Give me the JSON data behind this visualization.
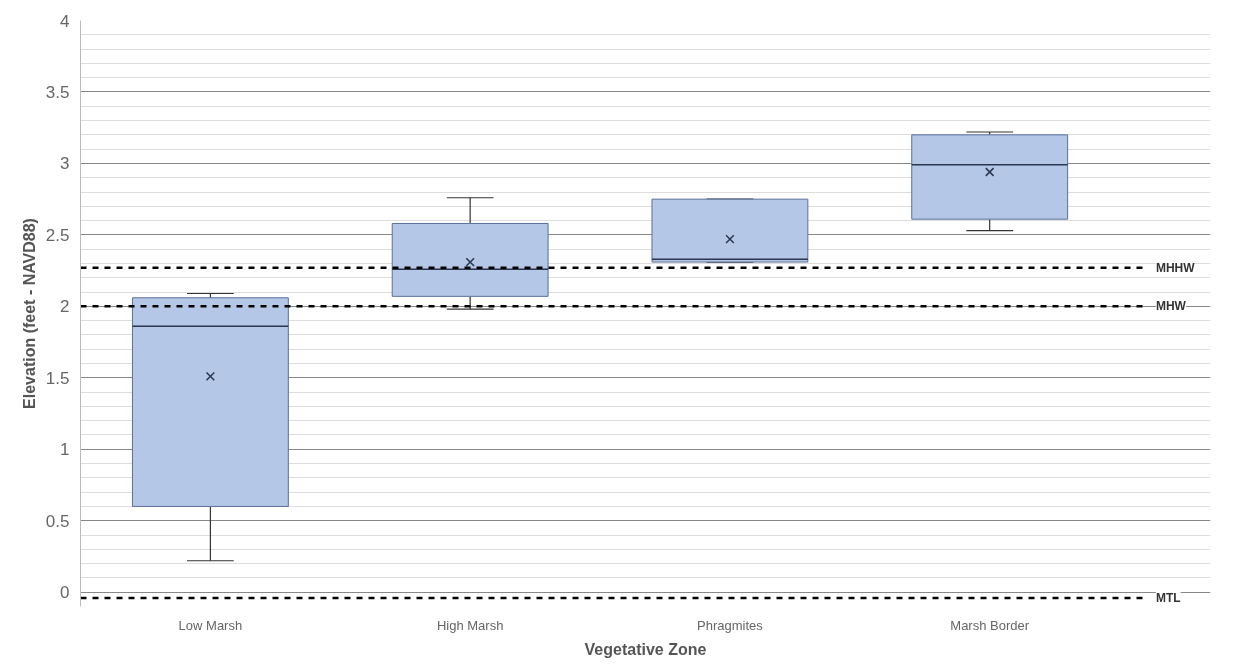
{
  "chart_data": {
    "type": "box",
    "xlabel": "Vegetative Zone",
    "ylabel": "Elevation (feet - NAVD88)",
    "categories": [
      "Low Marsh",
      "High Marsh",
      "Phragmites",
      "Marsh Border"
    ],
    "color": "#b4c7e7",
    "boxes": [
      {
        "low": 0.22,
        "q1": 0.6,
        "median": 1.86,
        "q3": 2.06,
        "high": 2.09,
        "mean": 1.51
      },
      {
        "low": 1.98,
        "q1": 2.07,
        "median": 2.26,
        "q3": 2.58,
        "high": 2.76,
        "mean": 2.31
      },
      {
        "low": 2.31,
        "q1": 2.31,
        "median": 2.33,
        "q3": 2.75,
        "high": 2.75,
        "mean": 2.47
      },
      {
        "low": 2.53,
        "q1": 2.61,
        "median": 2.99,
        "q3": 3.2,
        "high": 3.22,
        "mean": 2.94
      }
    ],
    "ylim": [
      -0.1,
      4
    ],
    "yticks": [
      0,
      0.5,
      1,
      1.5,
      2,
      2.5,
      3,
      3.5,
      4
    ],
    "grid": "y",
    "ref_lines": [
      {
        "axis": "y",
        "value": 2.27,
        "label": "MHHW",
        "line_style": "dashed"
      },
      {
        "axis": "y",
        "value": 2.0,
        "label": "MHW",
        "line_style": "dashed"
      },
      {
        "axis": "y",
        "value": -0.04,
        "label": "MTL",
        "line_style": "dashed"
      }
    ]
  }
}
